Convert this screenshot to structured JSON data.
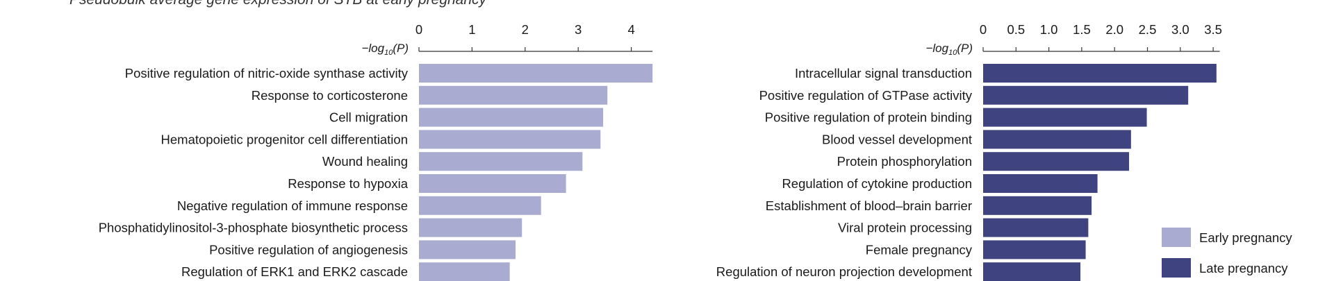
{
  "caption": "Pseudobulk average gene expression of STB at early pregnancy",
  "axis_title": {
    "prefix": "−log",
    "sub": "10",
    "suffix": "(P)"
  },
  "legend": [
    {
      "label": "Early pregnancy",
      "color": "#a9abd1"
    },
    {
      "label": "Late pregnancy",
      "color": "#3f4480"
    }
  ],
  "chart_data": [
    {
      "type": "bar",
      "orientation": "horizontal",
      "series_name": "Early pregnancy",
      "color": "#a9abd1",
      "xlabel": "−log10(P)",
      "xlim": [
        0,
        4.4
      ],
      "xticks": [
        0,
        1,
        2,
        3,
        4
      ],
      "xtick_labels": [
        "0",
        "1",
        "2",
        "3",
        "4"
      ],
      "categories": [
        "Positive regulation of nitric-oxide synthase activity",
        "Response to corticosterone",
        "Cell migration",
        "Hematopoietic progenitor cell differentiation",
        "Wound healing",
        "Response to hypoxia",
        "Negative regulation of immune response",
        "Phosphatidylinositol-3-phosphate biosynthetic process",
        "Positive regulation of angiogenesis",
        "Regulation of ERK1 and ERK2 cascade"
      ],
      "values": [
        4.4,
        3.55,
        3.47,
        3.42,
        3.08,
        2.77,
        2.3,
        1.94,
        1.82,
        1.71
      ]
    },
    {
      "type": "bar",
      "orientation": "horizontal",
      "series_name": "Late pregnancy",
      "color": "#3f4480",
      "xlabel": "−log10(P)",
      "xlim": [
        0,
        3.6
      ],
      "xticks": [
        0,
        0.5,
        1.0,
        1.5,
        2.0,
        2.5,
        3.0,
        3.5
      ],
      "xtick_labels": [
        "0",
        "0.5",
        "1.0",
        "1.5",
        "2.0",
        "2.5",
        "3.0",
        "3.5"
      ],
      "categories": [
        "Intracellular signal transduction",
        "Positive regulation of GTPase activity",
        "Positive regulation of protein binding",
        "Blood vessel development",
        "Protein phosphorylation",
        "Regulation of cytokine production",
        "Establishment of blood–brain barrier",
        "Viral protein processing",
        "Female pregnancy",
        "Regulation of neuron projection development"
      ],
      "values": [
        3.55,
        3.12,
        2.49,
        2.25,
        2.22,
        1.74,
        1.65,
        1.6,
        1.56,
        1.48
      ]
    }
  ]
}
